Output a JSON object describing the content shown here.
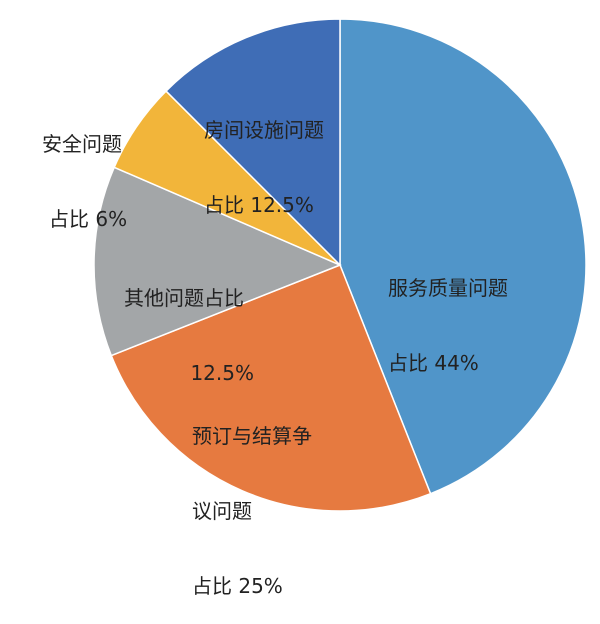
{
  "chart_data": {
    "type": "pie",
    "slices": [
      {
        "label": "服务质量问题",
        "share_text": "占比 44%",
        "value": 44,
        "color": "#5095C9"
      },
      {
        "label": "预订与结算争议问题",
        "share_text": "占比 25%",
        "value": 25,
        "color": "#E67A40"
      },
      {
        "label": "其他问题占比",
        "share_text": "12.5%",
        "value": 12.5,
        "color": "#A3A6A8"
      },
      {
        "label": "安全问题",
        "share_text": "占比 6%",
        "value": 6,
        "color": "#F2B53A"
      },
      {
        "label": "房间设施问题",
        "share_text": "占比 12.5%",
        "value": 12.5,
        "color": "#3F6DB6"
      }
    ]
  },
  "labels": {
    "service": {
      "line1": "服务质量问题",
      "line2": "占比 44%"
    },
    "booking": {
      "line1": "预订与结算争",
      "line2": "议问题",
      "line3": "占比 25%"
    },
    "other": {
      "line1": "其他问题占比",
      "line2": "12.5%"
    },
    "safety": {
      "line1": "安全问题",
      "line2": "占比 6%"
    },
    "facility": {
      "line1": "房间设施问题",
      "line2": "占比 12.5%"
    }
  }
}
